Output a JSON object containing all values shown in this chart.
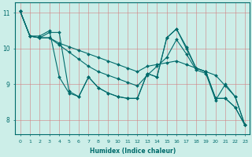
{
  "xlabel": "Humidex (Indice chaleur)",
  "xlim": [
    -0.5,
    23.5
  ],
  "ylim": [
    7.6,
    11.3
  ],
  "yticks": [
    8,
    9,
    10,
    11
  ],
  "xticks": [
    0,
    1,
    2,
    3,
    4,
    5,
    6,
    7,
    8,
    9,
    10,
    11,
    12,
    13,
    14,
    15,
    16,
    17,
    18,
    19,
    20,
    21,
    22,
    23
  ],
  "bg_color": "#cceee8",
  "line_color": "#006b6b",
  "grid_color": "#d08080",
  "lines": [
    [
      11.05,
      10.35,
      10.35,
      10.5,
      9.2,
      8.75,
      8.65,
      9.2,
      8.9,
      8.75,
      8.65,
      8.6,
      8.6,
      9.3,
      9.2,
      10.3,
      10.55,
      10.05,
      9.45,
      9.35,
      8.6,
      8.6,
      8.35,
      7.85
    ],
    [
      11.05,
      10.35,
      10.3,
      10.45,
      10.45,
      8.8,
      8.65,
      9.2,
      8.9,
      8.75,
      8.65,
      8.6,
      8.6,
      9.3,
      9.2,
      10.3,
      10.55,
      10.0,
      9.45,
      9.35,
      8.6,
      8.6,
      8.35,
      7.85
    ],
    [
      11.05,
      10.35,
      10.3,
      10.3,
      10.15,
      10.05,
      9.95,
      9.85,
      9.75,
      9.65,
      9.55,
      9.45,
      9.35,
      9.5,
      9.55,
      9.6,
      9.65,
      9.55,
      9.45,
      9.35,
      9.25,
      8.95,
      8.65,
      7.85
    ],
    [
      11.05,
      10.35,
      10.3,
      10.3,
      10.1,
      9.9,
      9.7,
      9.5,
      9.35,
      9.25,
      9.15,
      9.05,
      8.95,
      9.25,
      9.5,
      9.75,
      10.25,
      9.85,
      9.4,
      9.3,
      8.55,
      9.0,
      8.65,
      7.85
    ]
  ]
}
